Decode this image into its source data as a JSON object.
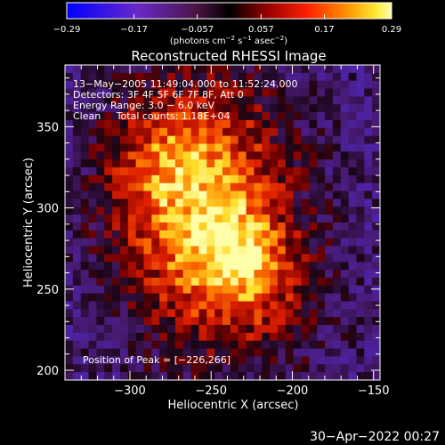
{
  "chart_data": {
    "type": "heatmap",
    "title": "Reconstructed RHESSI Image",
    "xlabel": "Heliocentric X (arcsec)",
    "ylabel": "Heliocentric Y (arcsec)",
    "xlim": [
      -340,
      -146
    ],
    "ylim": [
      194,
      388
    ],
    "xticks": [
      -300,
      -250,
      -200,
      -150
    ],
    "xtick_labels": [
      "−300",
      "−250",
      "−200",
      "−150"
    ],
    "yticks": [
      200,
      250,
      300,
      350
    ],
    "ytick_labels": [
      "200",
      "250",
      "300",
      "350"
    ],
    "colorbar": {
      "range": [
        -0.29,
        0.29
      ],
      "ticks": [
        -0.29,
        -0.17,
        -0.057,
        0.057,
        0.17,
        0.29
      ],
      "tick_labels": [
        "−0.29",
        "−0.17",
        "−0.057",
        "0.057",
        "0.17",
        "0.29"
      ],
      "units_prefix": "(photons cm",
      "units_exp1": "−2",
      "units_mid1": " s",
      "units_exp2": "−1",
      "units_mid2": " asec",
      "units_exp3": "−2",
      "units_suffix": ")"
    },
    "info_lines": [
      "13−May−2005 11:49:04.000 to 11:52:24.000",
      "Detectors: 3F 4F 5F 6F 7F 8F, Att 0",
      "Energy Range: 3.0 − 6.0 keV",
      "Clean     Total counts: 1.18E+04"
    ],
    "peak_label": "Position of Peak = [−226,266]",
    "peak_position": [
      -226,
      266
    ],
    "grid": false
  },
  "footer": {
    "timestamp": "30−Apr−2022 00:27"
  }
}
